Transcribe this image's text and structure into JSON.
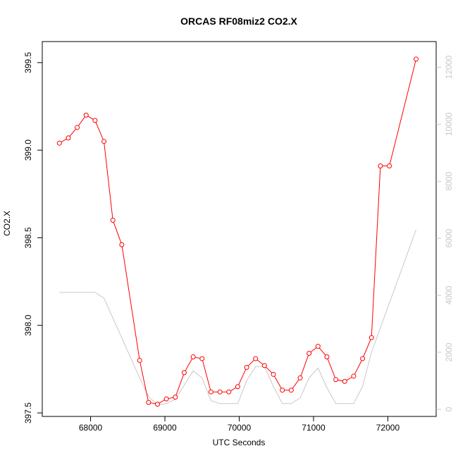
{
  "chart_data": {
    "type": "line",
    "title": "ORCAS RF08miz2 CO2.X",
    "xlabel": "UTC Seconds",
    "ylabel": "CO2.X",
    "xlim": [
      67350,
      72650
    ],
    "ylim": [
      397.48,
      399.62
    ],
    "ylim_right": [
      -250,
      12900
    ],
    "x_ticks": [
      68000,
      69000,
      70000,
      71000,
      72000
    ],
    "y_ticks": [
      397.5,
      398.0,
      398.5,
      399.0,
      399.5
    ],
    "y_ticks_right": [
      0,
      2000,
      4000,
      6000,
      8000,
      10000,
      12000
    ],
    "x_tick_labels": [
      "68000",
      "69000",
      "70000",
      "71000",
      "72000"
    ],
    "y_tick_labels": [
      "397.5",
      "398.0",
      "398.5",
      "399.0",
      "399.5"
    ],
    "y_tick_labels_right": [
      "0",
      "2000",
      "4000",
      "6000",
      "8000",
      "10000",
      "12000"
    ],
    "series": [
      {
        "color": "#ff0000",
        "axis": "left",
        "marker": "open-circle",
        "x": [
          67580,
          67700,
          67820,
          67940,
          68060,
          68180,
          68300,
          68420,
          68660,
          68780,
          68900,
          69020,
          69140,
          69260,
          69380,
          69500,
          69620,
          69740,
          69860,
          69980,
          70100,
          70220,
          70340,
          70460,
          70580,
          70700,
          70820,
          70940,
          71060,
          71180,
          71300,
          71420,
          71540,
          71660,
          71780,
          71900,
          72020,
          72380
        ],
        "y": [
          399.04,
          399.07,
          399.13,
          399.2,
          399.17,
          399.05,
          398.6,
          398.46,
          397.8,
          397.56,
          397.55,
          397.58,
          397.59,
          397.73,
          397.82,
          397.81,
          397.62,
          397.62,
          397.62,
          397.65,
          397.76,
          397.81,
          397.77,
          397.72,
          397.63,
          397.63,
          397.7,
          397.84,
          397.88,
          397.82,
          397.69,
          397.68,
          397.71,
          397.81,
          397.93,
          398.91,
          398.91,
          399.52
        ]
      },
      {
        "color": "#c8c8c8",
        "axis": "right",
        "marker": "none",
        "x": [
          67580,
          68060,
          68180,
          68420,
          68660,
          68780,
          68900,
          69020,
          69140,
          69260,
          69380,
          69500,
          69620,
          69740,
          69860,
          69980,
          70100,
          70220,
          70340,
          70460,
          70580,
          70700,
          70820,
          70940,
          71060,
          71180,
          71300,
          71420,
          71540,
          71660,
          71780,
          72380
        ],
        "y": [
          4100,
          4100,
          3900,
          2500,
          1100,
          450,
          150,
          200,
          350,
          850,
          1350,
          1100,
          300,
          200,
          200,
          200,
          1000,
          1500,
          1500,
          800,
          200,
          200,
          400,
          1100,
          1450,
          750,
          200,
          200,
          200,
          800,
          2000,
          6300
        ]
      }
    ],
    "grid": false,
    "legend": "none"
  }
}
